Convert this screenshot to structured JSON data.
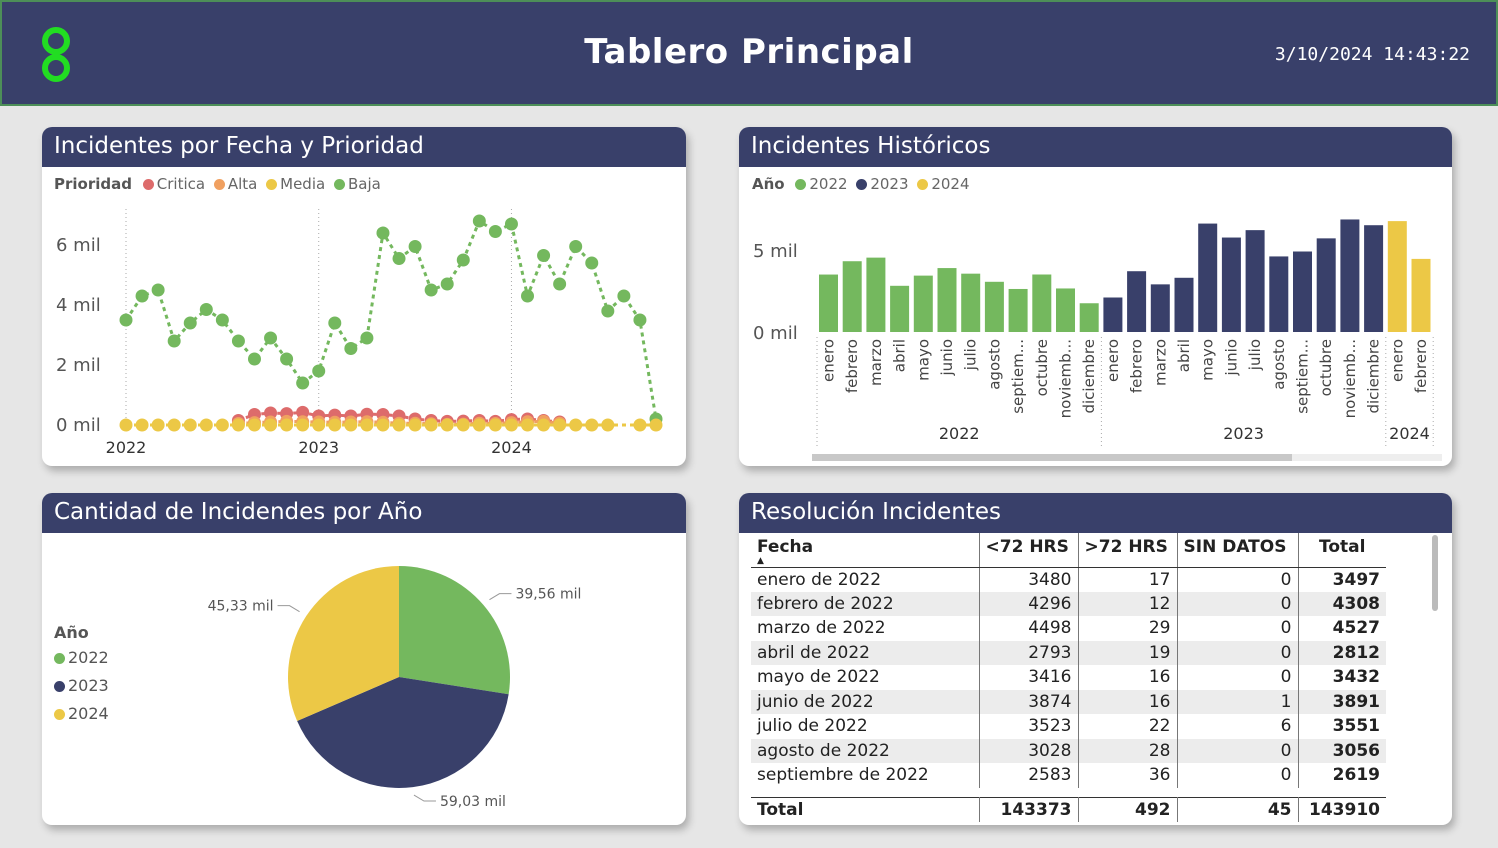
{
  "header": {
    "title": "Tablero Principal",
    "datetime": "3/10/2024 14:43:22",
    "logo_color": "#22dd22",
    "background": "#39406a"
  },
  "colors": {
    "critica": "#dd6b6b",
    "alta": "#f0a060",
    "media": "#ecc846",
    "baja": "#74b85e",
    "y2022": "#74b85e",
    "y2023": "#39406a",
    "y2024": "#ecc846"
  },
  "line_card": {
    "title": "Incidentes por Fecha y Prioridad",
    "legend_title": "Prioridad",
    "legend": [
      "Critica",
      "Alta",
      "Media",
      "Baja"
    ]
  },
  "bar_card": {
    "title": "Incidentes Históricos",
    "legend_title": "Año",
    "legend": [
      "2022",
      "2023",
      "2024"
    ]
  },
  "pie_card": {
    "title": "Cantidad de Incidendes por Año",
    "legend_title": "Año",
    "legend": [
      "2022",
      "2023",
      "2024"
    ]
  },
  "table_card": {
    "title": "Resolución Incidentes",
    "columns": [
      "Fecha",
      "<72 HRS",
      ">72 HRS",
      "SIN DATOS",
      "Total"
    ],
    "rows": [
      [
        "enero de 2022",
        "3480",
        "17",
        "0",
        "3497"
      ],
      [
        "febrero de 2022",
        "4296",
        "12",
        "0",
        "4308"
      ],
      [
        "marzo de 2022",
        "4498",
        "29",
        "0",
        "4527"
      ],
      [
        "abril de 2022",
        "2793",
        "19",
        "0",
        "2812"
      ],
      [
        "mayo de 2022",
        "3416",
        "16",
        "0",
        "3432"
      ],
      [
        "junio de 2022",
        "3874",
        "16",
        "1",
        "3891"
      ],
      [
        "julio de 2022",
        "3523",
        "22",
        "6",
        "3551"
      ],
      [
        "agosto de 2022",
        "3028",
        "28",
        "0",
        "3056"
      ],
      [
        "septiembre de 2022",
        "2583",
        "36",
        "0",
        "2619"
      ]
    ],
    "total": [
      "Total",
      "143373",
      "492",
      "45",
      "143910"
    ]
  },
  "chart_data": [
    {
      "type": "line",
      "title": "Incidentes por Fecha y Prioridad",
      "x_ticks": [
        "2022",
        "2023",
        "2024"
      ],
      "y_ticks": [
        "0 mil",
        "2 mil",
        "4 mil",
        "6 mil"
      ],
      "ylim": [
        0,
        7000
      ],
      "months": 34,
      "series": [
        {
          "name": "Baja",
          "values": [
            3500,
            4300,
            4500,
            2800,
            3400,
            3850,
            3500,
            2800,
            2200,
            2900,
            2200,
            1400,
            1800,
            3400,
            2550,
            2900,
            6400,
            5550,
            5950,
            4500,
            4700,
            5500,
            6800,
            6450,
            6700,
            4300,
            5650,
            4700,
            5950,
            5400,
            3800,
            4300,
            3500,
            200
          ]
        },
        {
          "name": "Media",
          "values": [
            0,
            0,
            0,
            0,
            0,
            0,
            0,
            0,
            0,
            0,
            0,
            0,
            0,
            0,
            0,
            0,
            0,
            0,
            0,
            0,
            0,
            0,
            0,
            0,
            0,
            0,
            0,
            0,
            0,
            0,
            0,
            0,
            0,
            0
          ]
        },
        {
          "name": "Alta",
          "values": [
            null,
            null,
            null,
            null,
            null,
            null,
            null,
            50,
            80,
            100,
            120,
            110,
            100,
            90,
            100,
            110,
            90,
            60,
            60,
            40,
            20,
            30,
            60,
            50,
            80,
            110,
            120,
            60,
            null,
            null,
            null,
            null,
            null,
            null
          ]
        },
        {
          "name": "Critica",
          "values": [
            null,
            null,
            null,
            null,
            null,
            null,
            null,
            150,
            350,
            400,
            380,
            420,
            300,
            330,
            300,
            360,
            350,
            300,
            200,
            150,
            120,
            130,
            150,
            120,
            180,
            200,
            150,
            100,
            null,
            null,
            null,
            null,
            null,
            null
          ]
        }
      ]
    },
    {
      "type": "bar",
      "title": "Incidentes Históricos",
      "y_ticks": [
        "0 mil",
        "5 mil"
      ],
      "ylim": [
        0,
        7000
      ],
      "categories": [
        "enero",
        "febrero",
        "marzo",
        "abril",
        "mayo",
        "junio",
        "julio",
        "agosto",
        "septiem...",
        "octubre",
        "noviemb...",
        "diciembre",
        "enero",
        "febrero",
        "marzo",
        "abril",
        "mayo",
        "junio",
        "julio",
        "agosto",
        "septiem...",
        "octubre",
        "noviemb...",
        "diciembre",
        "enero",
        "febrero"
      ],
      "years": [
        {
          "name": "2022",
          "count": 12
        },
        {
          "name": "2023",
          "count": 12
        },
        {
          "name": "2024",
          "count": 2
        }
      ],
      "values": [
        3497,
        4308,
        4527,
        2812,
        3432,
        3891,
        3551,
        3056,
        2619,
        3500,
        2650,
        1750,
        2100,
        3700,
        2900,
        3300,
        6600,
        5750,
        6200,
        4600,
        4900,
        5700,
        6850,
        6500,
        6750,
        4450
      ]
    },
    {
      "type": "pie",
      "title": "Cantidad de Incidendes por Año",
      "series": [
        {
          "name": "2022",
          "value": 39.56,
          "label": "39,56 mil"
        },
        {
          "name": "2023",
          "value": 59.03,
          "label": "59,03 mil"
        },
        {
          "name": "2024",
          "value": 45.33,
          "label": "45,33 mil"
        }
      ]
    }
  ]
}
